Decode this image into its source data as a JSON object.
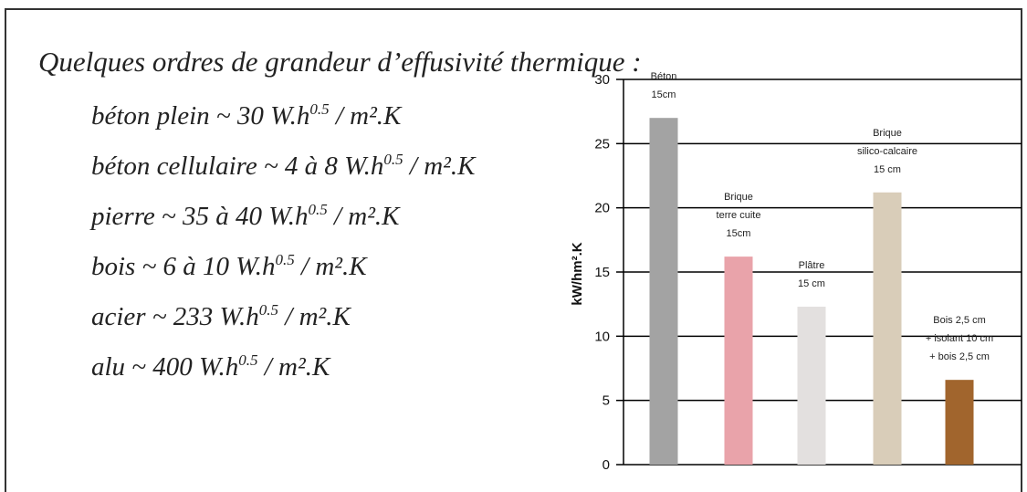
{
  "heading": "Quelques ordres de grandeur d’effusivité thermique :",
  "lines": [
    {
      "text": "béton plein ~ 30 W.h",
      "sup": "0.5",
      "unit": " / m².K"
    },
    {
      "text": "béton cellulaire ~ 4 à 8 W.h",
      "sup": "0.5",
      "unit": " / m².K"
    },
    {
      "text": "pierre ~ 35 à 40 W.h",
      "sup": "0.5",
      "unit": " / m².K"
    },
    {
      "text": "bois ~ 6 à 10 W.h",
      "sup": "0.5",
      "unit": " / m².K"
    },
    {
      "text": "acier ~ 233 W.h",
      "sup": "0.5",
      "unit": " / m².K"
    },
    {
      "text": "alu ~ 400 W.h",
      "sup": "0.5",
      "unit": " / m².K"
    }
  ],
  "chart_data": {
    "type": "bar",
    "y_label": "kW/hm².K",
    "categories": [
      [
        "Béton",
        "15cm"
      ],
      [
        "Brique",
        "terre cuite",
        "15cm"
      ],
      [
        "Plâtre",
        "15 cm"
      ],
      [
        "Brique",
        "silico-calcaire",
        "15 cm"
      ],
      [
        "Bois 2,5 cm",
        "+ isolant 10 cm",
        "+ bois 2,5 cm"
      ]
    ],
    "values": [
      27,
      16.2,
      12.3,
      21.2,
      6.6
    ],
    "colors": [
      "#a3a3a3",
      "#e9a3aa",
      "#e3e0df",
      "#d9cdb9",
      "#a1652d"
    ],
    "ylim": [
      0,
      30
    ],
    "yticks": [
      0,
      5,
      10,
      15,
      20,
      25,
      30
    ],
    "grid": true
  }
}
